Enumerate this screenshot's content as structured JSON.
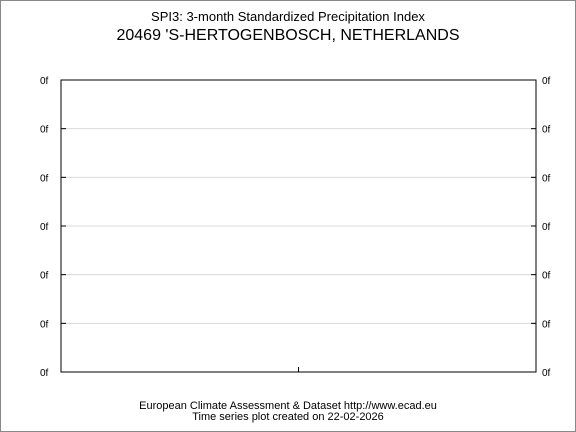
{
  "title": "SPI3: 3-month Standardized Precipitation Index",
  "subtitle": "20469 'S-HERTOGENBOSCH, NETHERLANDS",
  "footer": {
    "line1": "European Climate Assessment & Dataset  http://www.ecad.eu",
    "line2": "Time series plot created on 22-02-2026"
  },
  "chart_data": {
    "type": "line",
    "title": "SPI3: 3-month Standardized Precipitation Index",
    "subtitle": "20469 'S-HERTOGENBOSCH, NETHERLANDS",
    "xlabel": "",
    "ylabel": "",
    "y_tick_labels_left": [
      "0f",
      "0f",
      "0f",
      "0f",
      "0f",
      "0f",
      "0f"
    ],
    "y_tick_labels_right": [
      "0f",
      "0f",
      "0f",
      "0f",
      "0f",
      "0f",
      "0f"
    ],
    "series": [],
    "grid": true,
    "colors": {
      "grid": "#d9d9d9",
      "axis": "#000000",
      "frame": "#888888"
    }
  }
}
